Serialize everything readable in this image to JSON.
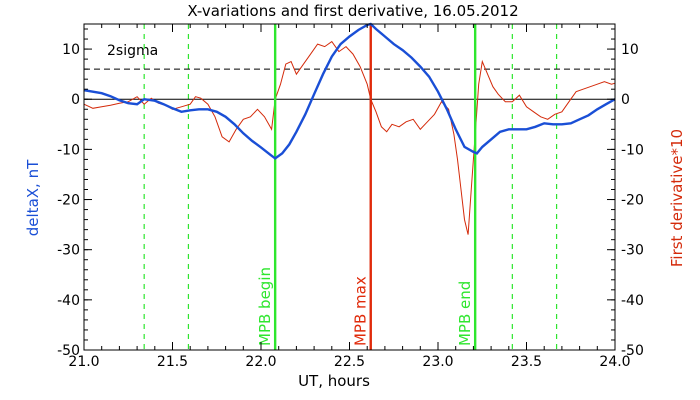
{
  "chart_data": {
    "type": "line",
    "title": "X-variations and first derivative, 16.05.2012",
    "xlabel": "UT, hours",
    "ylabel_left": "deltaX, nT",
    "ylabel_right": "First derivative*10",
    "xlim": [
      21.0,
      24.0
    ],
    "ylim_left": [
      -50,
      15
    ],
    "ylim_right": [
      -50,
      15
    ],
    "x_ticks": [
      "21.0",
      "21.5",
      "22.0",
      "22.5",
      "23.0",
      "23.5",
      "24.0"
    ],
    "y_ticks_left": [
      "10",
      "0",
      "-10",
      "-20",
      "-30",
      "-40",
      "-50"
    ],
    "y_ticks_right": [
      "10",
      "0",
      "-10",
      "-20",
      "-30",
      "-40",
      "-50"
    ],
    "threshold": {
      "label": "2sigma",
      "y": 6
    },
    "zero_line": 0,
    "colors": {
      "deltaX": "#1a4fd6",
      "derivative": "#d42a0a",
      "marker_green": "#2ee62e",
      "marker_red": "#e02a0a",
      "axis": "#000000"
    },
    "markers": [
      {
        "label": "MPB begin",
        "x": 22.08,
        "color": "#2ee62e"
      },
      {
        "label": "MPB max",
        "x": 22.62,
        "color": "#e02a0a"
      },
      {
        "label": "MPB end",
        "x": 23.21,
        "color": "#2ee62e"
      }
    ],
    "dashed_markers": [
      21.34,
      21.59,
      23.42,
      23.67
    ],
    "series": [
      {
        "name": "deltaX, nT",
        "axis": "left",
        "x": [
          21.0,
          21.05,
          21.1,
          21.15,
          21.2,
          21.25,
          21.3,
          21.34,
          21.4,
          21.45,
          21.5,
          21.55,
          21.6,
          21.65,
          21.7,
          21.75,
          21.8,
          21.85,
          21.9,
          21.95,
          22.0,
          22.05,
          22.08,
          22.12,
          22.16,
          22.2,
          22.25,
          22.3,
          22.35,
          22.4,
          22.45,
          22.5,
          22.55,
          22.6,
          22.62,
          22.65,
          22.7,
          22.75,
          22.8,
          22.85,
          22.9,
          22.95,
          23.0,
          23.05,
          23.1,
          23.15,
          23.2,
          23.22,
          23.25,
          23.3,
          23.35,
          23.4,
          23.45,
          23.5,
          23.55,
          23.6,
          23.65,
          23.7,
          23.75,
          23.8,
          23.85,
          23.9,
          23.95,
          24.0
        ],
        "y": [
          1.8,
          1.5,
          1.2,
          0.6,
          -0.2,
          -0.8,
          -1.0,
          0.0,
          -0.3,
          -1.0,
          -1.8,
          -2.5,
          -2.2,
          -2.0,
          -2.0,
          -2.5,
          -3.5,
          -5.0,
          -6.8,
          -8.3,
          -9.6,
          -11.0,
          -11.8,
          -10.8,
          -9.0,
          -6.5,
          -3.0,
          1.0,
          5.0,
          8.5,
          11.0,
          12.5,
          13.8,
          14.8,
          15.0,
          14.0,
          12.5,
          11.0,
          9.8,
          8.3,
          6.5,
          4.5,
          1.5,
          -2.0,
          -6.0,
          -9.5,
          -10.5,
          -10.8,
          -9.5,
          -8.0,
          -6.5,
          -6.0,
          -6.0,
          -6.0,
          -5.5,
          -4.8,
          -5.0,
          -5.0,
          -4.8,
          -4.0,
          -3.2,
          -2.0,
          -1.0,
          0.0
        ]
      },
      {
        "name": "First derivative*10",
        "axis": "right",
        "x": [
          21.0,
          21.05,
          21.1,
          21.15,
          21.2,
          21.25,
          21.3,
          21.34,
          21.38,
          21.42,
          21.46,
          21.5,
          21.55,
          21.6,
          21.63,
          21.66,
          21.7,
          21.74,
          21.78,
          21.82,
          21.86,
          21.9,
          21.94,
          21.98,
          22.02,
          22.06,
          22.08,
          22.11,
          22.14,
          22.17,
          22.2,
          22.24,
          22.28,
          22.32,
          22.36,
          22.4,
          22.44,
          22.48,
          22.52,
          22.56,
          22.6,
          22.62,
          22.65,
          22.68,
          22.71,
          22.74,
          22.78,
          22.82,
          22.86,
          22.9,
          22.94,
          22.98,
          23.02,
          23.06,
          23.09,
          23.11,
          23.13,
          23.15,
          23.17,
          23.19,
          23.21,
          23.23,
          23.25,
          23.28,
          23.31,
          23.34,
          23.38,
          23.42,
          23.46,
          23.5,
          23.54,
          23.58,
          23.62,
          23.66,
          23.7,
          23.74,
          23.78,
          23.82,
          23.86,
          23.9,
          23.94,
          23.98,
          24.0
        ],
        "y": [
          -1.0,
          -1.8,
          -1.5,
          -1.2,
          -0.8,
          -0.5,
          0.5,
          -1.0,
          0.2,
          -0.8,
          -1.2,
          -2.0,
          -1.5,
          -1.0,
          0.5,
          0.2,
          -1.0,
          -3.5,
          -7.5,
          -8.5,
          -6.0,
          -4.0,
          -3.5,
          -2.0,
          -3.5,
          -6.0,
          0.0,
          3.0,
          7.0,
          7.5,
          5.0,
          7.0,
          9.0,
          11.0,
          10.5,
          11.5,
          9.5,
          10.5,
          9.0,
          6.5,
          3.0,
          0.0,
          -2.5,
          -5.5,
          -6.5,
          -5.0,
          -5.5,
          -4.5,
          -4.0,
          -6.0,
          -4.5,
          -3.0,
          -0.5,
          -2.0,
          -7.0,
          -12.0,
          -18.0,
          -24.0,
          -27.0,
          -17.0,
          -7.0,
          3.0,
          7.5,
          5.0,
          2.5,
          1.0,
          -0.5,
          -0.5,
          0.8,
          -1.5,
          -2.5,
          -3.5,
          -4.0,
          -3.0,
          -2.5,
          -0.5,
          1.5,
          2.0,
          2.5,
          3.0,
          3.5,
          3.0,
          3.2
        ]
      }
    ]
  }
}
